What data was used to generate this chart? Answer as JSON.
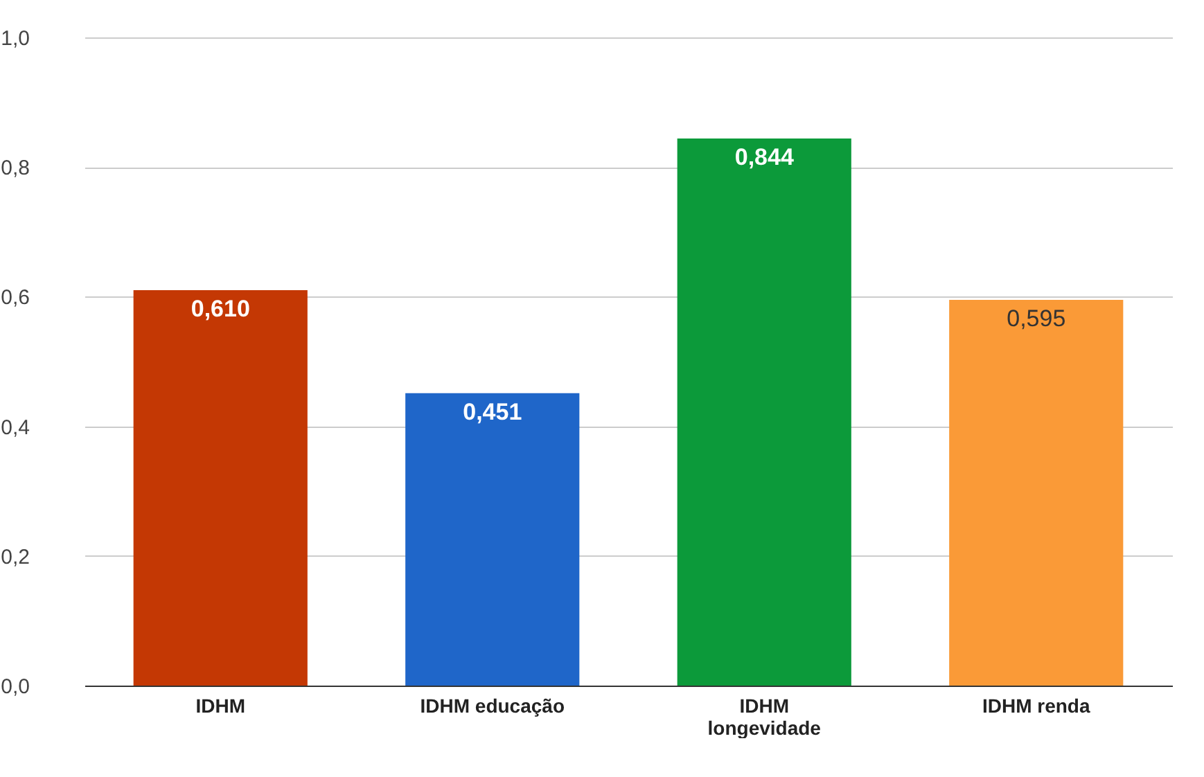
{
  "chart_data": {
    "type": "bar",
    "categories": [
      "IDHM",
      "IDHM educação",
      "IDHM longevidade",
      "IDHM renda"
    ],
    "values": [
      0.61,
      0.451,
      0.844,
      0.595
    ],
    "colors": [
      "#c43804",
      "#1f66c9",
      "#0c9a3a",
      "#fa9a37"
    ],
    "value_labels": [
      "0,610",
      "0,451",
      "0,844",
      "0,595"
    ],
    "ylim": [
      0,
      1
    ],
    "yticks": [
      {
        "value": 0,
        "label": "0,0"
      },
      {
        "value": 0.2,
        "label": "0,2"
      },
      {
        "value": 0.4,
        "label": "0,4"
      },
      {
        "value": 0.6,
        "label": "0,6"
      },
      {
        "value": 0.8,
        "label": "0,8"
      },
      {
        "value": 1,
        "label": "1,0"
      }
    ],
    "grid": "y",
    "legend": false
  }
}
